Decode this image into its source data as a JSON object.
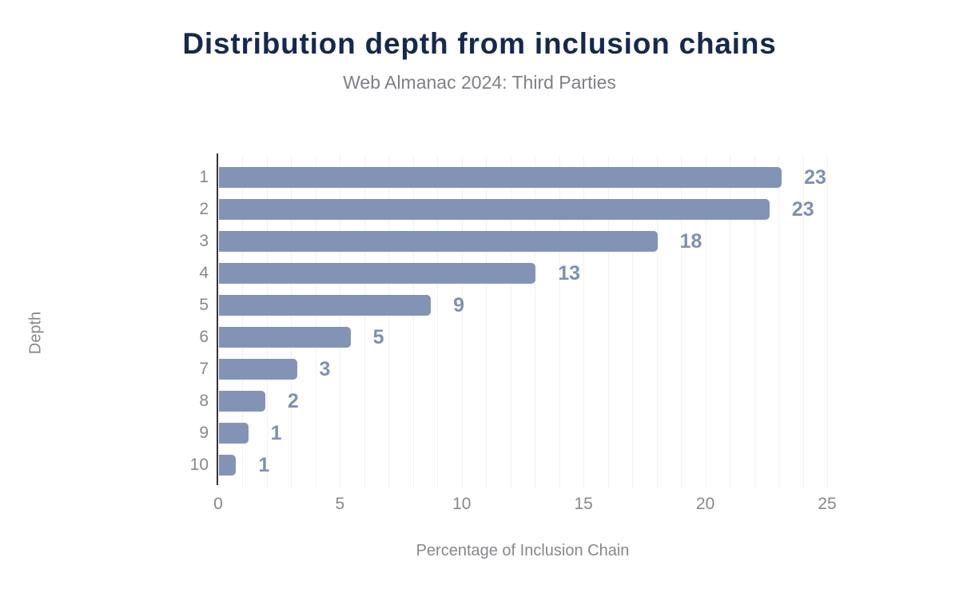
{
  "header": {
    "title": "Distribution depth from inclusion chains",
    "subtitle": "Web Almanac 2024: Third Parties"
  },
  "chart_data": {
    "type": "bar",
    "orientation": "horizontal",
    "title": "Distribution depth from inclusion chains",
    "subtitle": "Web Almanac 2024: Third Parties",
    "xlabel": "Percentage of Inclusion Chain",
    "ylabel": "Depth",
    "categories": [
      "1",
      "2",
      "3",
      "4",
      "5",
      "6",
      "7",
      "8",
      "9",
      "10"
    ],
    "values": [
      23.1,
      22.6,
      18.0,
      13.0,
      8.7,
      5.4,
      3.2,
      1.9,
      1.2,
      0.7
    ],
    "value_labels": [
      "23",
      "23",
      "18",
      "13",
      "9",
      "5",
      "3",
      "2",
      "1",
      "1"
    ],
    "xlim": [
      0,
      25
    ],
    "x_ticks": [
      0,
      5,
      10,
      15,
      20,
      25
    ],
    "grid": "vertical gridlines every 1 unit",
    "legend": "none"
  },
  "colors": {
    "background": "#ffffff",
    "title": "#15294e",
    "subtitle": "#7d8086",
    "bar": "#8294b5",
    "value_label": "#7d90b5",
    "axis_text": "#86888c",
    "axis_line": "#333333",
    "gridline": "#f1f1f1"
  }
}
